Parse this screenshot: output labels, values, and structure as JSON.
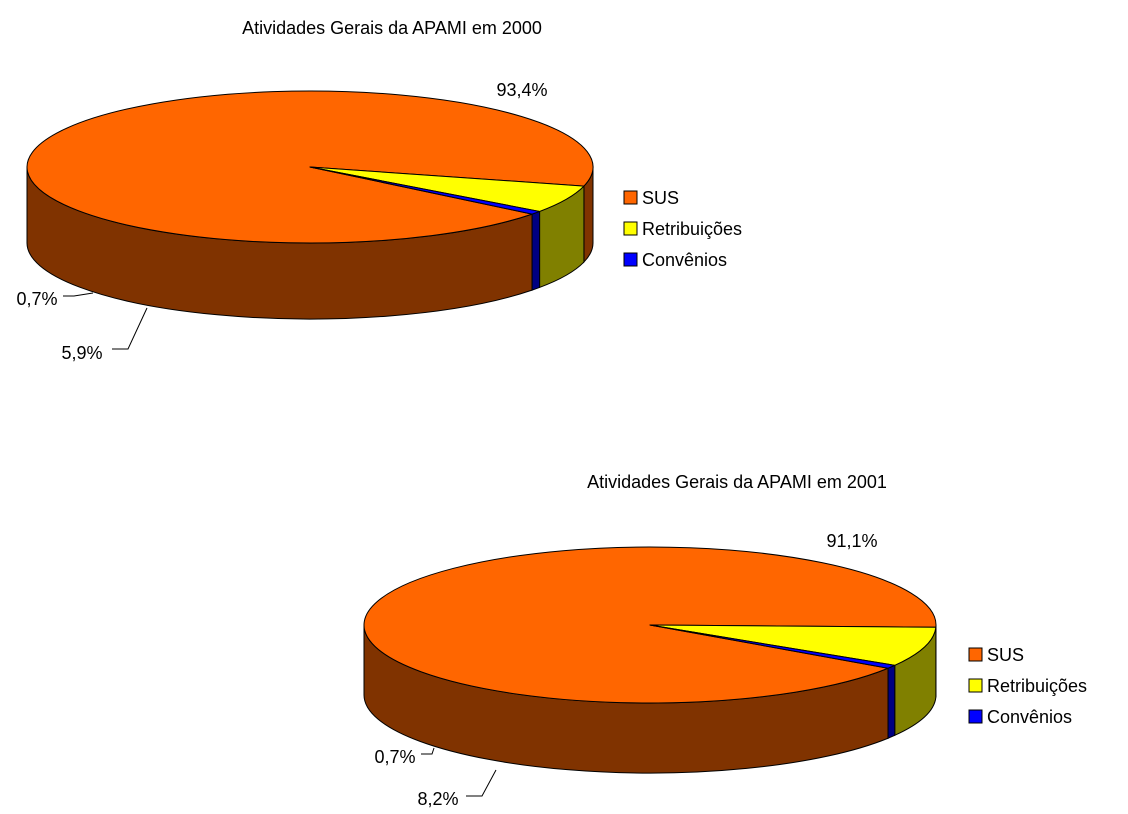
{
  "chart_data": [
    {
      "type": "pie",
      "style": "3d",
      "title": "Atividades Gerais da APAMI em 2000",
      "categories": [
        "SUS",
        "Retribuições",
        "Convênios"
      ],
      "values": [
        93.4,
        5.9,
        0.7
      ],
      "data_labels": [
        "93,4%",
        "5,9%",
        "0,7%"
      ],
      "legend_position": "right",
      "colors": [
        "#FF6600",
        "#FFFF00",
        "#0000FF"
      ],
      "side_colors": [
        "#803300",
        "#808000",
        "#000080"
      ]
    },
    {
      "type": "pie",
      "style": "3d",
      "title": "Atividades Gerais da APAMI em 2001",
      "categories": [
        "SUS",
        "Retribuições",
        "Convênios"
      ],
      "values": [
        91.1,
        8.2,
        0.7
      ],
      "data_labels": [
        "91,1%",
        "8,2%",
        "0,7%"
      ],
      "legend_position": "right",
      "colors": [
        "#FF6600",
        "#FFFF00",
        "#0000FF"
      ],
      "side_colors": [
        "#803300",
        "#808000",
        "#000080"
      ]
    }
  ]
}
